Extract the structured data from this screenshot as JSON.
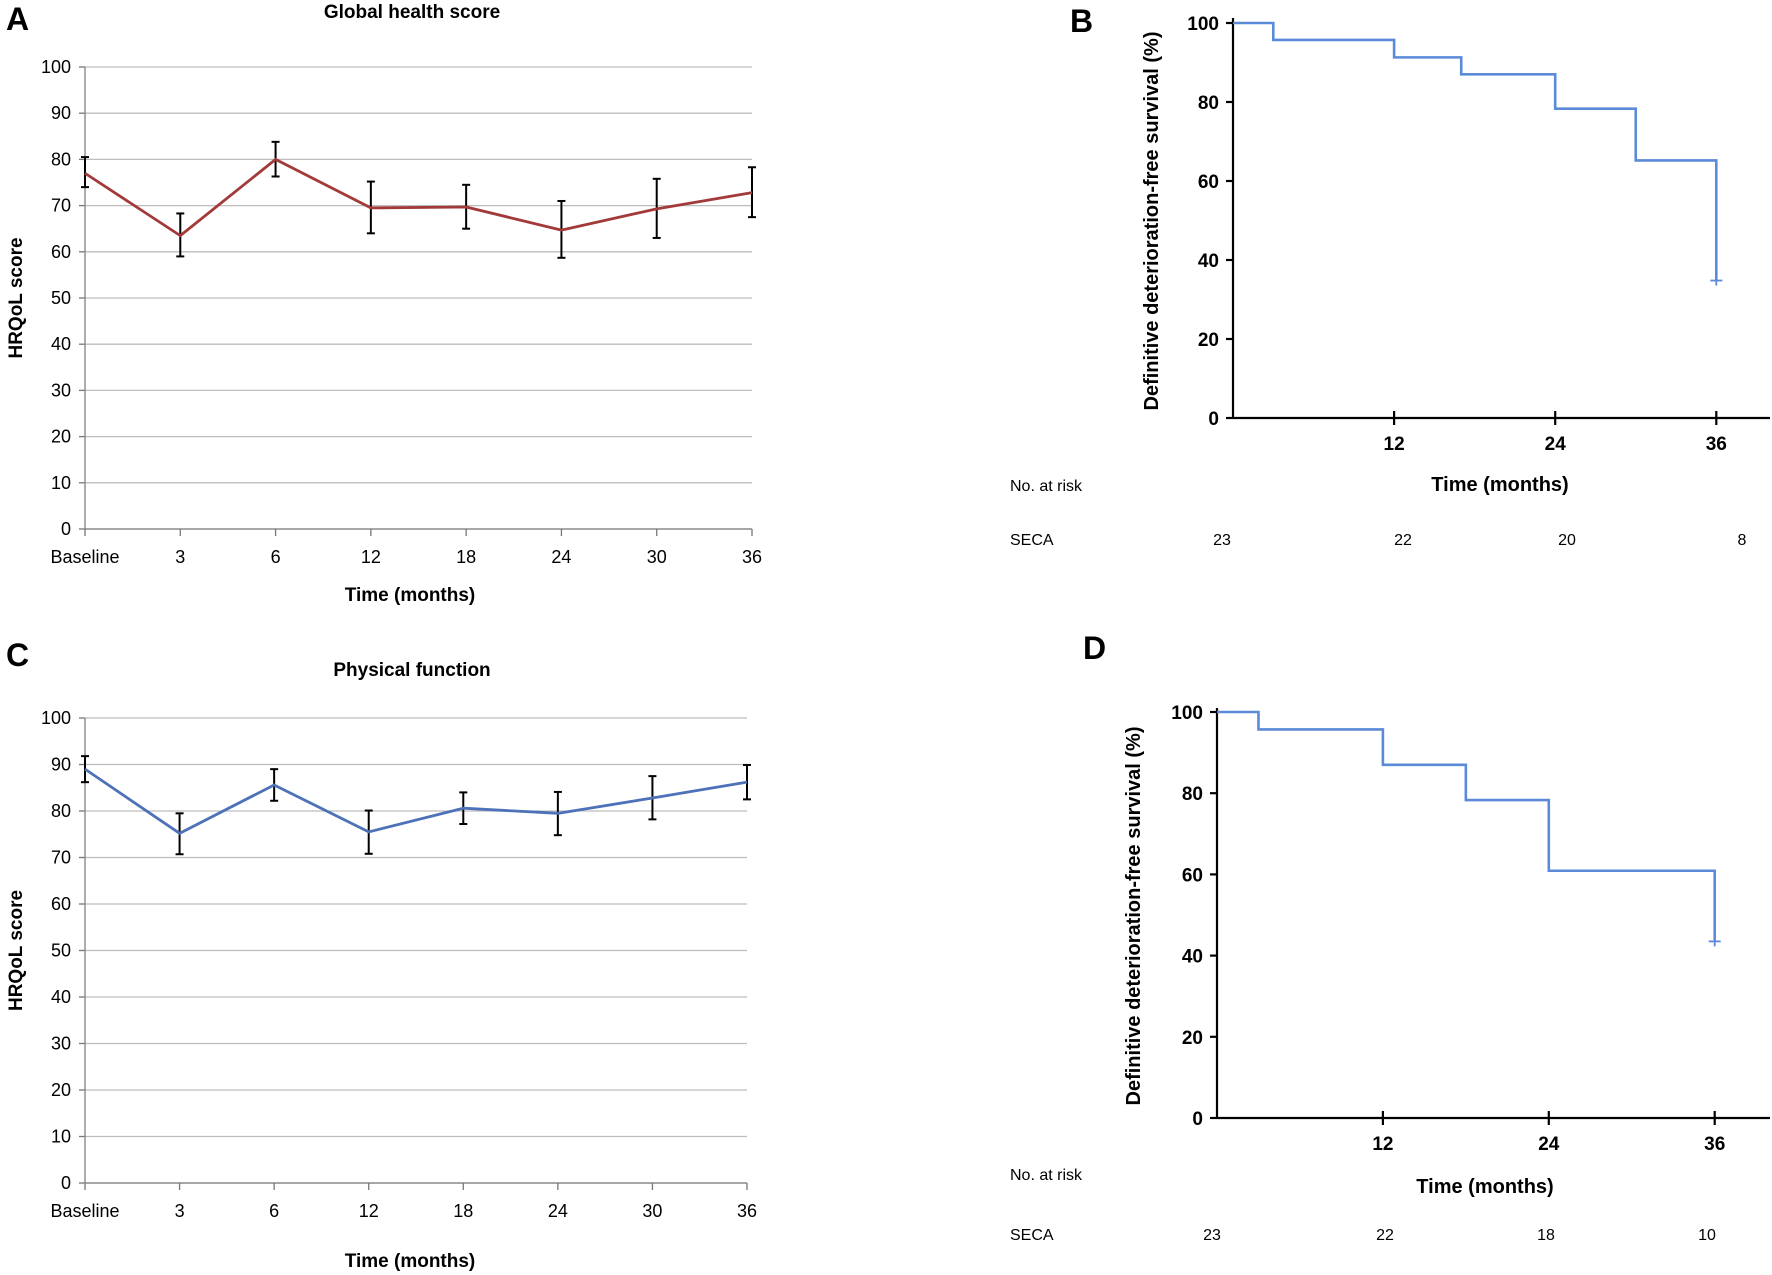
{
  "panels": {
    "A": {
      "letter": "A"
    },
    "B": {
      "letter": "B"
    },
    "C": {
      "letter": "C"
    },
    "D": {
      "letter": "D"
    }
  },
  "colors": {
    "global_line": "#a33a3a",
    "physical_line": "#4e72b8",
    "km_line": "#5b8ad8",
    "grid": "#bdbdbd",
    "axis": "#000000"
  },
  "chart_data": [
    {
      "id": "A",
      "type": "line",
      "title": "Global health score",
      "xlabel": "Time (months)",
      "ylabel": "HRQoL score",
      "categories": [
        "Baseline",
        "3",
        "6",
        "12",
        "18",
        "24",
        "30",
        "36"
      ],
      "yticks": [
        0,
        10,
        20,
        30,
        40,
        50,
        60,
        70,
        80,
        90,
        100
      ],
      "ylim": [
        0,
        100
      ],
      "grid": true,
      "series": [
        {
          "values": [
            77,
            63.5,
            80,
            69.5,
            69.7,
            64.7,
            69.3,
            72.8
          ],
          "err_low": [
            74,
            59,
            76.3,
            64,
            65,
            58.7,
            63,
            67.5
          ],
          "err_high": [
            80.5,
            68.3,
            83.8,
            75.2,
            74.5,
            71,
            75.8,
            78.3
          ],
          "color": "#a33a3a"
        }
      ]
    },
    {
      "id": "B",
      "type": "line",
      "step": true,
      "title": "",
      "xlabel": "Time (months)",
      "ylabel": "Definitive deterioration-free survival (%)",
      "xticks": [
        12,
        24,
        36
      ],
      "yticks": [
        0,
        20,
        40,
        60,
        80,
        100
      ],
      "xlim": [
        0,
        40
      ],
      "ylim": [
        0,
        100
      ],
      "grid": false,
      "series": [
        {
          "x": [
            0,
            3,
            12,
            17,
            24,
            30,
            36
          ],
          "y": [
            100,
            95.7,
            91.3,
            87,
            78.3,
            65.2,
            34.8
          ],
          "censor_marks": [
            {
              "x": 36,
              "y": 34.8
            }
          ],
          "color": "#5b8ad8"
        }
      ],
      "risk_table": {
        "header": "No. at risk",
        "row_label": "SECA",
        "x": [
          0,
          12,
          24,
          36
        ],
        "values": [
          "23",
          "22",
          "20",
          "8"
        ]
      }
    },
    {
      "id": "C",
      "type": "line",
      "title": "Physical function",
      "xlabel": "Time (months)",
      "ylabel": "HRQoL score",
      "categories": [
        "Baseline",
        "3",
        "6",
        "12",
        "18",
        "24",
        "30",
        "36"
      ],
      "yticks": [
        0,
        10,
        20,
        30,
        40,
        50,
        60,
        70,
        80,
        90,
        100
      ],
      "ylim": [
        0,
        100
      ],
      "grid": true,
      "series": [
        {
          "values": [
            89,
            75.2,
            85.6,
            75.5,
            80.6,
            79.5,
            82.8,
            86.2
          ],
          "err_low": [
            86.2,
            70.7,
            82.2,
            70.8,
            77.2,
            74.8,
            78.2,
            82.5
          ],
          "err_high": [
            91.8,
            79.5,
            89,
            80.1,
            84,
            84.1,
            87.5,
            89.9
          ],
          "color": "#4e72b8"
        }
      ]
    },
    {
      "id": "D",
      "type": "line",
      "step": true,
      "title": "",
      "xlabel": "Time (months)",
      "ylabel": "Definitive deterioration-free survival (%)",
      "xticks": [
        12,
        24,
        36
      ],
      "yticks": [
        0,
        20,
        40,
        60,
        80,
        100
      ],
      "xlim": [
        0,
        40
      ],
      "ylim": [
        0,
        100
      ],
      "grid": false,
      "series": [
        {
          "x": [
            0,
            3,
            12,
            18,
            24,
            36
          ],
          "y": [
            100,
            95.7,
            87,
            78.3,
            60.9,
            43.5
          ],
          "censor_marks": [
            {
              "x": 36,
              "y": 43.5
            }
          ],
          "color": "#5b8ad8"
        }
      ],
      "risk_table": {
        "header": "No. at risk",
        "row_label": "SECA",
        "x": [
          0,
          12,
          24,
          36
        ],
        "values": [
          "23",
          "22",
          "18",
          "10"
        ]
      }
    }
  ]
}
